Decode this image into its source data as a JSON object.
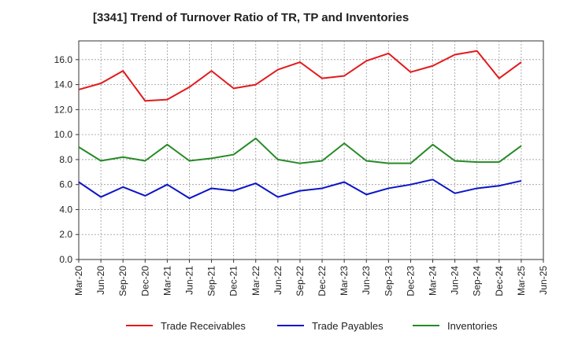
{
  "chart_data": {
    "type": "line",
    "title": "[3341]  Trend of Turnover Ratio of TR, TP and Inventories",
    "xlabel": "",
    "ylabel": "",
    "ylim": [
      0,
      17.5
    ],
    "yticks": [
      "0.0",
      "2.0",
      "4.0",
      "6.0",
      "8.0",
      "10.0",
      "12.0",
      "14.0",
      "16.0"
    ],
    "ytick_values": [
      0,
      2,
      4,
      6,
      8,
      10,
      12,
      14,
      16
    ],
    "xtick_labels": [
      "Mar-20",
      "Jun-20",
      "Sep-20",
      "Dec-20",
      "Mar-21",
      "Jun-21",
      "Sep-21",
      "Dec-21",
      "Mar-22",
      "Jun-22",
      "Sep-22",
      "Dec-22",
      "Mar-23",
      "Jun-23",
      "Sep-23",
      "Dec-23",
      "Mar-24",
      "Jun-24",
      "Sep-24",
      "Dec-24",
      "Mar-25",
      "Jun-25"
    ],
    "categories": [
      "Mar-20",
      "Jun-20",
      "Sep-20",
      "Dec-20",
      "Mar-21",
      "Jun-21",
      "Sep-21",
      "Dec-21",
      "Mar-22",
      "Jun-22",
      "Sep-22",
      "Dec-22",
      "Mar-23",
      "Jun-23",
      "Sep-23",
      "Dec-23",
      "Mar-24",
      "Jun-24",
      "Sep-24",
      "Dec-24",
      "Mar-25"
    ],
    "grid": true,
    "legend_position": "bottom",
    "series": [
      {
        "name": "Trade Receivables",
        "color": "#e3191c",
        "values": [
          13.6,
          14.1,
          15.1,
          12.7,
          12.8,
          13.8,
          15.1,
          13.7,
          14.0,
          15.2,
          15.8,
          14.5,
          14.7,
          15.9,
          16.5,
          15.0,
          15.5,
          16.4,
          16.7,
          14.5,
          15.8
        ]
      },
      {
        "name": "Trade Payables",
        "color": "#0b14c8",
        "values": [
          6.2,
          5.0,
          5.8,
          5.1,
          6.0,
          4.9,
          5.7,
          5.5,
          6.1,
          5.0,
          5.5,
          5.7,
          6.2,
          5.2,
          5.7,
          6.0,
          6.4,
          5.3,
          5.7,
          5.9,
          6.3
        ]
      },
      {
        "name": "Inventories",
        "color": "#268a26",
        "values": [
          9.0,
          7.9,
          8.2,
          7.9,
          9.2,
          7.9,
          8.1,
          8.4,
          9.7,
          8.0,
          7.7,
          7.9,
          9.3,
          7.9,
          7.7,
          7.7,
          9.2,
          7.9,
          7.8,
          7.8,
          9.1
        ]
      }
    ]
  }
}
